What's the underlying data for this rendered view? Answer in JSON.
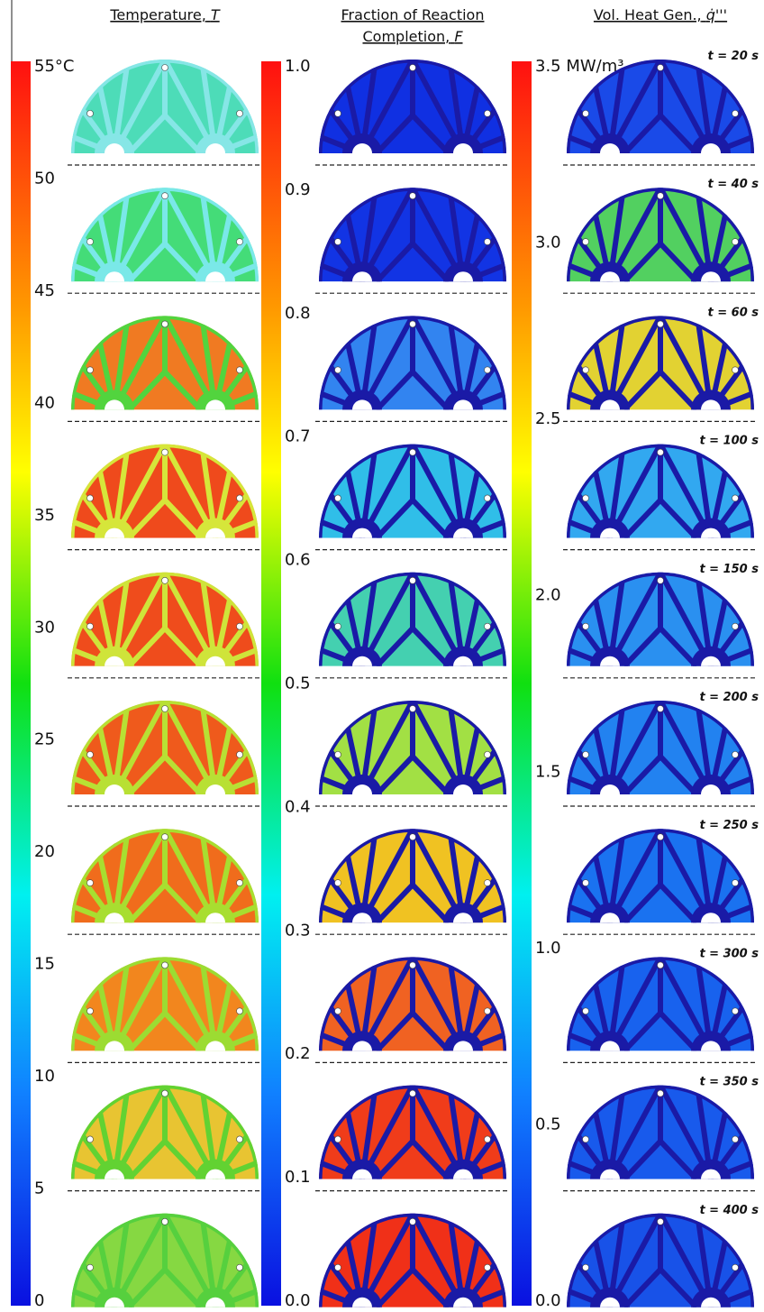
{
  "columns": [
    {
      "title_lines": [
        "Temperature,"
      ],
      "title_symbol": "T",
      "scale_labels": [
        "55°C",
        "50",
        "45",
        "40",
        "35",
        "30",
        "25",
        "20",
        "15",
        "10",
        "5",
        "0"
      ],
      "panels": [
        {
          "fill": "#4ddcb8",
          "rib": "#86e6e6"
        },
        {
          "fill": "#44dc78",
          "rib": "#7ae8e8"
        },
        {
          "fill": "#f07a22",
          "rib": "#52d43e"
        },
        {
          "fill": "#ef4a1c",
          "rib": "#d6e63a"
        },
        {
          "fill": "#ef4c1c",
          "rib": "#cfe43a"
        },
        {
          "fill": "#ef5a1c",
          "rib": "#b8e034"
        },
        {
          "fill": "#f06c1c",
          "rib": "#a8de30"
        },
        {
          "fill": "#f2861e",
          "rib": "#9cdc32"
        },
        {
          "fill": "#e8c432",
          "rib": "#62d232"
        },
        {
          "fill": "#86d842",
          "rib": "#56d03e"
        }
      ]
    },
    {
      "title_lines": [
        "Fraction of Reaction",
        "Completion,"
      ],
      "title_symbol": "F",
      "scale_labels": [
        "1.0",
        "0.9",
        "0.8",
        "0.7",
        "0.6",
        "0.5",
        "0.4",
        "0.3",
        "0.2",
        "0.1",
        "0.0"
      ],
      "panels": [
        {
          "fill": "#1030e2",
          "rib": "#1a1aa6"
        },
        {
          "fill": "#1234e4",
          "rib": "#1a1aa6"
        },
        {
          "fill": "#3284f0",
          "rib": "#1a1aa6"
        },
        {
          "fill": "#30bee8",
          "rib": "#1a1aa6"
        },
        {
          "fill": "#44d0b0",
          "rib": "#1a1aa6"
        },
        {
          "fill": "#a2e044",
          "rib": "#1a1aa6"
        },
        {
          "fill": "#f0c222",
          "rib": "#1a1aa6"
        },
        {
          "fill": "#f06222",
          "rib": "#1a1aa6"
        },
        {
          "fill": "#f03c1a",
          "rib": "#1a1aa6"
        },
        {
          "fill": "#f03018",
          "rib": "#1a1aa6"
        }
      ]
    },
    {
      "title_lines": [
        "Vol. Heat Gen.,"
      ],
      "title_symbol": "q̇'''",
      "scale_labels": [
        "3.5 MW/m³",
        "3.0",
        "2.5",
        "2.0",
        "1.5",
        "1.0",
        "0.5",
        "0.0"
      ],
      "panels": [
        {
          "fill": "#1a4ae8",
          "rib": "#1a1aa6"
        },
        {
          "fill": "#52d060",
          "rib": "#1a1aa6"
        },
        {
          "fill": "#e2d232",
          "rib": "#1a1aa6"
        },
        {
          "fill": "#32a8f0",
          "rib": "#1a1aa6"
        },
        {
          "fill": "#2a90f0",
          "rib": "#1a1aa6"
        },
        {
          "fill": "#2282f0",
          "rib": "#1a1aa6"
        },
        {
          "fill": "#1a72f0",
          "rib": "#1a1aa6"
        },
        {
          "fill": "#1862ee",
          "rib": "#1a1aa6"
        },
        {
          "fill": "#185aec",
          "rib": "#1a1aa6"
        },
        {
          "fill": "#1852e8",
          "rib": "#1a1aa6"
        }
      ]
    }
  ],
  "times": [
    "t = 20 s",
    "t = 40 s",
    "t = 60 s",
    "t = 100 s",
    "t = 150 s",
    "t = 200 s",
    "t = 250 s",
    "t = 300 s",
    "t = 350 s",
    "t = 400 s"
  ]
}
